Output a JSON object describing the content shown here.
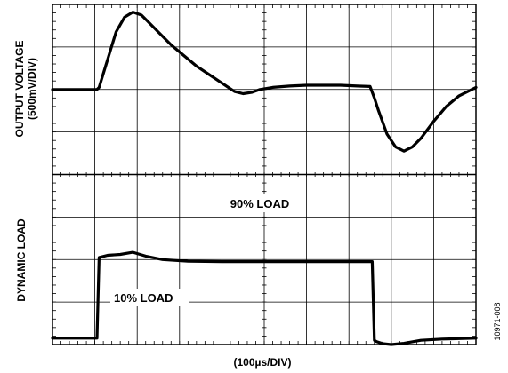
{
  "chart_data": {
    "type": "line",
    "title": "",
    "xlabel": "(100µs/DIV)",
    "figure_id": "10971-008",
    "xlim": [
      0,
      10
    ],
    "grid": true,
    "panels": [
      {
        "ylabel_line1": "OUTPUT VOLTAGE",
        "ylabel_line2": "(500mV/DIV)",
        "ylim": [
          -2,
          2
        ],
        "series": [
          {
            "x": [
              0,
              1.05,
              1.1,
              1.3,
              1.5,
              1.7,
              1.9,
              2.1,
              2.3,
              2.5,
              2.8,
              3.1,
              3.4,
              3.7,
              4.0,
              4.3,
              4.5,
              4.7,
              4.9,
              5.2,
              5.6,
              6.0,
              6.4,
              6.8,
              7.2,
              7.5,
              7.6,
              7.7,
              7.9,
              8.1,
              8.3,
              8.5,
              8.7,
              9.0,
              9.3,
              9.6,
              10.0
            ],
            "y": [
              0,
              0,
              0.05,
              0.7,
              1.35,
              1.7,
              1.82,
              1.75,
              1.55,
              1.35,
              1.05,
              0.8,
              0.55,
              0.35,
              0.15,
              -0.05,
              -0.1,
              -0.07,
              0.0,
              0.05,
              0.08,
              0.1,
              0.1,
              0.1,
              0.08,
              0.07,
              -0.2,
              -0.5,
              -1.05,
              -1.35,
              -1.45,
              -1.35,
              -1.15,
              -0.75,
              -0.4,
              -0.15,
              0.05
            ]
          }
        ]
      },
      {
        "ylabel": "DYNAMIC LOAD",
        "ylim": [
          -2,
          2
        ],
        "annotations": [
          "90% LOAD",
          "10% LOAD"
        ],
        "series": [
          {
            "x": [
              0,
              1.05,
              1.1,
              1.3,
              1.6,
              1.9,
              2.2,
              2.6,
              3.2,
              4,
              5,
              6,
              7,
              7.5,
              7.55,
              7.6,
              7.65,
              7.8,
              8.0,
              8.3,
              8.7,
              9.2,
              10.0
            ],
            "y": [
              -1.85,
              -1.85,
              0.05,
              0.1,
              0.12,
              0.17,
              0.08,
              0.0,
              -0.04,
              -0.05,
              -0.05,
              -0.05,
              -0.05,
              -0.05,
              -0.05,
              -1.9,
              -1.93,
              -1.98,
              -2.0,
              -1.97,
              -1.9,
              -1.87,
              -1.85
            ]
          }
        ]
      }
    ]
  }
}
